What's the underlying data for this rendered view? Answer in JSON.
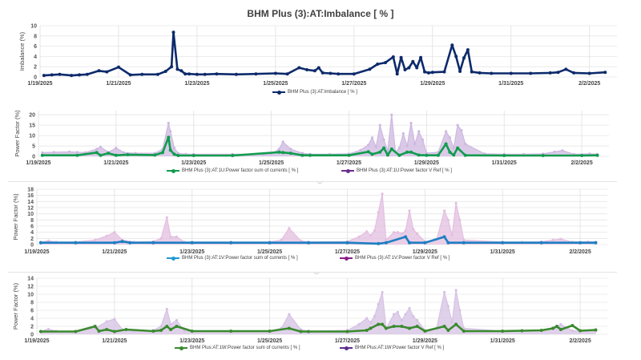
{
  "page_title": "BHM Plus (3):AT:Imbalance [ % ]",
  "chart_data": [
    {
      "type": "line",
      "title": "BHM Plus (3):AT:Imbalance [ % ]",
      "xlabel": "",
      "ylabel": "Imbalance (%)",
      "ylim": [
        0,
        10
      ],
      "yticks": [
        "0",
        "2",
        "4",
        "6",
        "8",
        "10"
      ],
      "xlim_days": [
        0,
        14.7
      ],
      "xticks": [
        "1/19/2025",
        "1/21/2025",
        "1/23/2025",
        "1/25/2025",
        "1/27/2025",
        "1/29/2025",
        "1/31/2025",
        "2/2/2025"
      ],
      "grid": true,
      "legend_position": "bottom",
      "series": [
        {
          "name": "BHM Plus (3):AT:Imbalance [ % ]",
          "color": "#0d2a6b",
          "x": [
            0.1,
            0.3,
            0.5,
            0.8,
            1.0,
            1.2,
            1.5,
            1.7,
            2.0,
            2.3,
            2.6,
            3.0,
            3.2,
            3.35,
            3.4,
            3.5,
            3.6,
            3.7,
            3.8,
            4.0,
            4.2,
            4.5,
            5.0,
            5.5,
            6.0,
            6.3,
            6.6,
            6.8,
            7.0,
            7.1,
            7.2,
            7.4,
            7.6,
            8.0,
            8.4,
            8.6,
            8.8,
            9.0,
            9.1,
            9.2,
            9.3,
            9.4,
            9.5,
            9.6,
            9.7,
            9.8,
            9.9,
            10.0,
            10.3,
            10.5,
            10.6,
            10.7,
            10.8,
            10.9,
            11.0,
            11.2,
            11.5,
            12.0,
            12.5,
            13.0,
            13.2,
            13.4,
            13.6,
            14.0,
            14.4
          ],
          "y": [
            0.3,
            0.4,
            0.5,
            0.3,
            0.4,
            0.5,
            1.2,
            1.0,
            1.9,
            0.4,
            0.5,
            0.5,
            1.1,
            2.0,
            8.7,
            1.5,
            1.2,
            0.6,
            0.6,
            0.5,
            0.5,
            0.6,
            0.5,
            0.6,
            0.7,
            0.6,
            1.8,
            1.4,
            1.2,
            1.8,
            0.8,
            0.7,
            0.6,
            0.6,
            1.5,
            2.5,
            2.8,
            3.9,
            0.6,
            3.8,
            1.4,
            1.8,
            3.0,
            1.8,
            3.8,
            1.0,
            0.8,
            0.9,
            1.0,
            6.2,
            4.0,
            1.1,
            3.7,
            5.3,
            1.0,
            0.8,
            0.7,
            0.7,
            0.7,
            0.8,
            0.9,
            1.5,
            0.8,
            0.7,
            0.9
          ]
        }
      ]
    },
    {
      "type": "line",
      "title": "",
      "xlabel": "",
      "ylabel": "Power Factor (%)",
      "ylim": [
        0,
        22
      ],
      "yticks": [
        "0",
        "5",
        "10",
        "15",
        "20"
      ],
      "yvals": [
        0,
        5,
        10,
        15,
        20
      ],
      "xlim_days": [
        0,
        14.7
      ],
      "xticks": [
        "1/19/2025",
        "1/21/2025",
        "1/23/2025",
        "1/25/2025",
        "1/27/2025",
        "1/29/2025",
        "1/31/2025",
        "2/2/2025"
      ],
      "grid": true,
      "legend_position": "bottom",
      "series": [
        {
          "name": "BHM Plus (3):AT:1U:Power factor V Ref [ % ]",
          "color": "#cdb8e0",
          "legend_color": "#6a2c91",
          "fill": true,
          "x": [
            0.1,
            0.4,
            0.8,
            1.0,
            1.2,
            1.5,
            1.6,
            1.8,
            2.0,
            2.2,
            2.5,
            3.0,
            3.2,
            3.35,
            3.4,
            3.5,
            3.6,
            3.8,
            4.0,
            5.0,
            5.5,
            5.8,
            6.0,
            6.2,
            6.3,
            6.5,
            6.8,
            7.0,
            7.5,
            8.0,
            8.3,
            8.5,
            8.6,
            8.7,
            8.8,
            8.9,
            9.0,
            9.1,
            9.2,
            9.3,
            9.4,
            9.5,
            9.6,
            9.7,
            9.8,
            9.9,
            10.0,
            10.3,
            10.5,
            10.6,
            10.7,
            10.8,
            10.9,
            11.0,
            11.5,
            12.0,
            12.5,
            13.0,
            13.3,
            13.5,
            13.8,
            14.2,
            14.4
          ],
          "y": [
            1.8,
            2.0,
            2.2,
            2.0,
            1.8,
            3.5,
            4.5,
            2.0,
            4.0,
            1.8,
            1.5,
            1.5,
            3.5,
            16.0,
            12.0,
            4.0,
            1.5,
            1.0,
            1.0,
            1.0,
            1.0,
            1.0,
            1.2,
            3.5,
            7.0,
            3.5,
            1.5,
            1.0,
            1.0,
            1.2,
            3.0,
            5.5,
            9.0,
            4.5,
            15.0,
            8.0,
            2.5,
            20.0,
            2.0,
            4.0,
            11.0,
            5.0,
            16.0,
            6.0,
            12.0,
            8.0,
            1.5,
            2.0,
            12.0,
            9.0,
            4.0,
            15.0,
            12.5,
            6.0,
            1.2,
            1.0,
            1.0,
            1.2,
            2.2,
            2.8,
            1.0,
            1.2,
            1.0
          ]
        },
        {
          "name": "BHM Plus (3):AT:1U:Power factor sum of currents [ % ]",
          "color": "#109c4e",
          "legend_color": "#109c4e",
          "fill": false,
          "x": [
            0.1,
            1.0,
            1.5,
            1.6,
            1.8,
            2.0,
            2.3,
            3.0,
            3.2,
            3.35,
            3.4,
            3.5,
            3.6,
            4.0,
            5.0,
            6.2,
            6.3,
            6.5,
            6.8,
            7.0,
            8.0,
            8.5,
            8.6,
            8.8,
            8.9,
            9.0,
            9.1,
            9.3,
            9.5,
            9.6,
            9.8,
            10.0,
            10.3,
            10.5,
            10.6,
            10.7,
            10.8,
            11.0,
            12.0,
            13.0,
            14.0,
            14.4
          ],
          "y": [
            0.5,
            0.5,
            1.8,
            0.5,
            1.5,
            0.5,
            0.8,
            0.6,
            1.8,
            9.2,
            3.0,
            1.0,
            0.4,
            0.4,
            0.4,
            2.0,
            1.8,
            1.5,
            0.5,
            0.5,
            0.5,
            2.2,
            1.0,
            2.0,
            4.0,
            0.6,
            3.5,
            0.5,
            2.0,
            2.0,
            0.6,
            0.5,
            0.5,
            6.0,
            2.0,
            0.6,
            4.0,
            0.5,
            0.4,
            0.4,
            0.4,
            0.5
          ]
        }
      ]
    },
    {
      "type": "line",
      "title": "",
      "xlabel": "",
      "ylabel": "Power Factor (%)",
      "ylim": [
        0,
        18
      ],
      "yticks": [
        "0",
        "2",
        "4",
        "6",
        "8",
        "10",
        "12",
        "14",
        "16",
        "18"
      ],
      "yvals": [
        0,
        2,
        4,
        6,
        8,
        10,
        12,
        14,
        16,
        18
      ],
      "xlim_days": [
        0,
        14.7
      ],
      "xticks": [
        "1/19/2025",
        "1/21/2025",
        "1/23/2025",
        "1/25/2025",
        "1/27/2025",
        "1/29/2025",
        "1/31/2025",
        "2/2/2025"
      ],
      "grid": true,
      "legend_position": "bottom",
      "series": [
        {
          "name": "BHM Plus (3):AT:1V:Power factor V Ref [ % ]",
          "color": "#e3bfe0",
          "legend_color": "#8b1c8b",
          "fill": true,
          "x": [
            0.1,
            0.3,
            0.5,
            1.0,
            1.5,
            1.8,
            2.0,
            2.2,
            2.5,
            3.0,
            3.2,
            3.35,
            3.45,
            3.6,
            3.8,
            4.0,
            5.0,
            6.0,
            6.3,
            6.5,
            6.8,
            7.0,
            8.0,
            8.3,
            8.5,
            8.6,
            8.7,
            8.8,
            8.9,
            9.0,
            9.2,
            9.3,
            9.4,
            9.5,
            9.6,
            9.7,
            9.8,
            10.0,
            10.3,
            10.5,
            10.6,
            10.7,
            10.8,
            10.9,
            11.0,
            12.0,
            12.5,
            13.0,
            13.3,
            13.5,
            13.8,
            14.2,
            14.4
          ],
          "y": [
            0.8,
            1.2,
            0.8,
            0.8,
            1.5,
            2.8,
            4.0,
            1.5,
            0.8,
            1.0,
            2.0,
            8.8,
            2.5,
            2.5,
            0.8,
            0.8,
            0.8,
            0.8,
            1.5,
            5.3,
            1.2,
            0.8,
            1.0,
            2.5,
            4.2,
            3.0,
            4.5,
            10.5,
            16.5,
            1.5,
            4.0,
            4.0,
            3.5,
            4.5,
            11.0,
            5.0,
            3.5,
            1.0,
            1.5,
            11.0,
            8.0,
            3.0,
            13.5,
            8.0,
            1.5,
            0.8,
            0.8,
            0.9,
            1.5,
            1.8,
            0.8,
            0.9,
            0.8
          ]
        },
        {
          "name": "BHM Plus (3):AT:1V:Power factor sum of currents [ % ]",
          "color": "#1e7fc2",
          "legend_color": "#1e9ad6",
          "fill": false,
          "x": [
            0.1,
            1.0,
            2.0,
            2.2,
            2.4,
            3.0,
            4.0,
            5.0,
            6.0,
            7.0,
            8.0,
            8.8,
            9.0,
            9.5,
            9.6,
            10.0,
            10.5,
            10.6,
            11.0,
            12.0,
            13.0,
            14.0,
            14.4
          ],
          "y": [
            0.6,
            0.6,
            0.6,
            1.0,
            0.6,
            0.6,
            0.6,
            0.6,
            0.6,
            0.6,
            0.6,
            0.3,
            0.6,
            2.5,
            0.6,
            0.6,
            2.5,
            0.6,
            0.6,
            0.6,
            0.6,
            0.6,
            0.6
          ]
        }
      ]
    },
    {
      "type": "line",
      "title": "",
      "xlabel": "",
      "ylabel": "Power Factor (%)",
      "ylim": [
        0,
        14
      ],
      "yticks": [
        "0",
        "2",
        "4",
        "6",
        "8",
        "10",
        "12",
        "14"
      ],
      "yvals": [
        0,
        2,
        4,
        6,
        8,
        10,
        12,
        14
      ],
      "xlim_days": [
        0,
        14.7
      ],
      "xticks": [
        "1/19/2025",
        "1/21/2025",
        "1/23/2025",
        "1/25/2025",
        "1/27/2025",
        "1/29/2025",
        "1/31/2025",
        "2/2/2025"
      ],
      "grid": true,
      "legend_position": "bottom",
      "series": [
        {
          "name": "BHM Plus:AT:1W:Power factor V Ref [ % ]",
          "color": "#d5c2e4",
          "legend_color": "#5a2d8c",
          "fill": true,
          "x": [
            0.1,
            0.3,
            0.5,
            1.0,
            1.5,
            1.8,
            2.0,
            2.2,
            2.5,
            3.0,
            3.2,
            3.35,
            3.45,
            3.6,
            3.8,
            4.0,
            5.0,
            6.0,
            6.3,
            6.5,
            6.8,
            7.0,
            8.0,
            8.3,
            8.5,
            8.6,
            8.7,
            8.8,
            8.9,
            9.0,
            9.2,
            9.3,
            9.4,
            9.5,
            9.6,
            9.7,
            9.8,
            10.0,
            10.3,
            10.5,
            10.6,
            10.7,
            10.8,
            10.9,
            11.0,
            12.0,
            12.5,
            13.0,
            13.3,
            13.5,
            13.8,
            14.2,
            14.4
          ],
          "y": [
            0.8,
            1.3,
            0.8,
            0.8,
            1.5,
            3.2,
            3.8,
            1.2,
            0.8,
            1.0,
            2.0,
            6.3,
            2.5,
            3.5,
            0.8,
            0.8,
            0.8,
            0.8,
            1.5,
            5.0,
            1.2,
            0.8,
            1.0,
            2.5,
            4.0,
            3.0,
            4.5,
            7.5,
            10.5,
            1.5,
            5.0,
            5.5,
            3.5,
            5.0,
            6.5,
            4.5,
            3.5,
            1.0,
            1.5,
            10.5,
            7.0,
            3.0,
            11.0,
            6.0,
            1.5,
            0.8,
            0.8,
            0.9,
            1.5,
            2.5,
            0.9,
            0.9,
            0.8
          ]
        },
        {
          "name": "BHM Plus:AT:1W:Power factor sum of currents [ % ]",
          "color": "#3a8a2e",
          "legend_color": "#3a8a2e",
          "fill": false,
          "x": [
            0.1,
            1.0,
            1.5,
            1.6,
            1.8,
            2.0,
            2.3,
            3.0,
            3.2,
            3.35,
            3.45,
            3.6,
            4.0,
            5.0,
            6.0,
            6.5,
            6.8,
            7.0,
            8.0,
            8.5,
            8.6,
            8.8,
            8.9,
            9.0,
            9.2,
            9.4,
            9.6,
            9.8,
            10.0,
            10.5,
            10.6,
            10.8,
            11.0,
            12.0,
            12.5,
            13.0,
            13.3,
            13.4,
            13.5,
            13.8,
            14.0,
            14.4
          ],
          "y": [
            0.7,
            0.7,
            2.0,
            0.8,
            1.2,
            0.7,
            1.2,
            0.8,
            1.0,
            2.0,
            1.2,
            2.0,
            0.8,
            0.8,
            0.8,
            1.5,
            0.7,
            0.7,
            0.7,
            1.0,
            1.5,
            2.5,
            2.5,
            1.5,
            2.0,
            2.0,
            1.5,
            2.0,
            0.8,
            2.0,
            1.0,
            2.5,
            0.8,
            0.8,
            0.9,
            1.0,
            1.5,
            2.0,
            1.2,
            2.2,
            0.9,
            1.1
          ]
        }
      ]
    }
  ]
}
